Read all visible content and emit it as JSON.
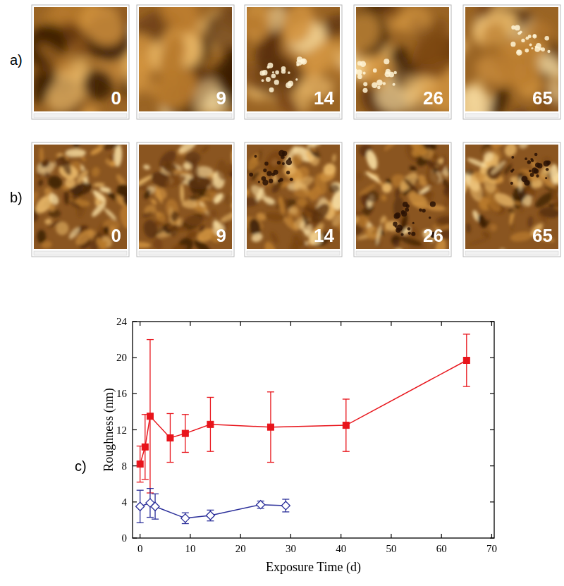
{
  "panels": [
    {
      "label": "a)",
      "times": [
        0,
        9,
        14,
        26,
        65
      ]
    },
    {
      "label": "b)",
      "times": [
        0,
        9,
        14,
        26,
        65
      ]
    },
    {
      "label": "c)"
    }
  ],
  "chart_data": {
    "type": "line",
    "x_label": "Exposure Time (d)",
    "y_label": "Roughness (nm)",
    "xlim": [
      -1.5,
      70.5
    ],
    "xticks": [
      0,
      10,
      20,
      30,
      40,
      50,
      60,
      70
    ],
    "ylim": [
      0,
      24
    ],
    "yticks": [
      0,
      4,
      8,
      12,
      16,
      20,
      24
    ],
    "series": [
      {
        "color": "#e8141b",
        "marker": "square",
        "x": [
          0,
          1,
          2,
          6,
          9,
          14,
          26,
          41,
          65
        ],
        "values": [
          8.2,
          10.1,
          13.5,
          11.1,
          11.6,
          12.6,
          12.3,
          12.5,
          19.7
        ],
        "errors": [
          2.0,
          3.6,
          8.5,
          2.7,
          2.1,
          3.0,
          3.9,
          2.9,
          2.9
        ]
      },
      {
        "color": "#2b2f9a",
        "marker": "open-diamond",
        "x": [
          0,
          2,
          3,
          9,
          14,
          24,
          29
        ],
        "values": [
          3.5,
          3.9,
          3.5,
          2.2,
          2.5,
          3.7,
          3.6
        ],
        "errors": [
          1.8,
          1.6,
          1.4,
          0.6,
          0.6,
          0.4,
          0.7
        ]
      }
    ]
  }
}
